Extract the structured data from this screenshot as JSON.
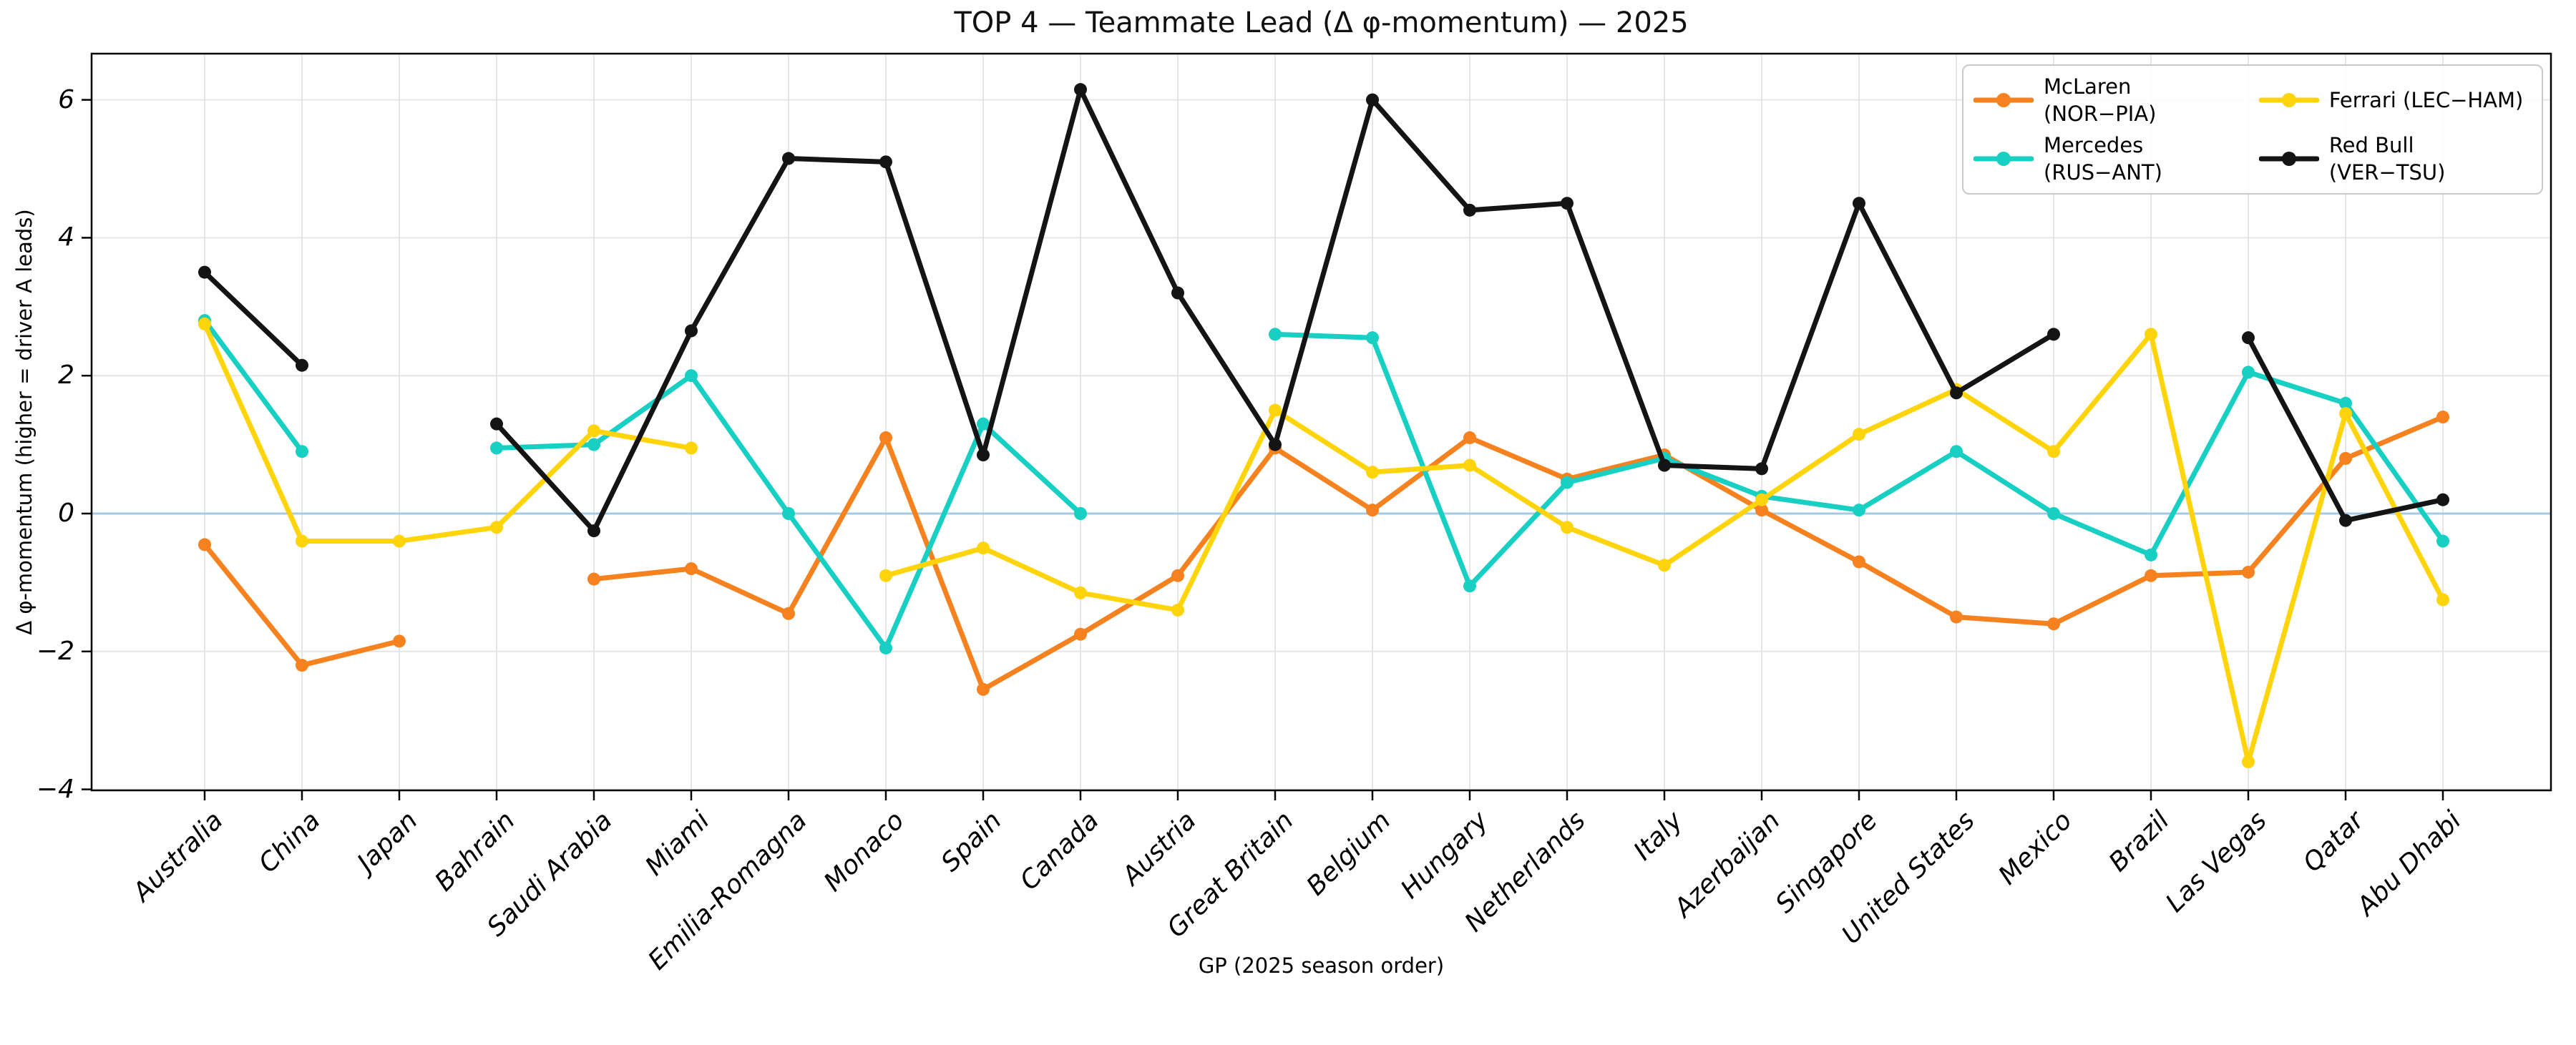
{
  "title": "TOP 4 — Teammate Lead (Δ φ-momentum) — 2025",
  "chart_data": {
    "type": "line",
    "title": "TOP 4 — Teammate Lead (Δ φ-momentum) — 2025",
    "xlabel": "GP (2025 season order)",
    "ylabel": "Δ φ-momentum (higher = driver A leads)",
    "categories": [
      "Australia",
      "China",
      "Japan",
      "Bahrain",
      "Saudi Arabia",
      "Miami",
      "Emilia-Romagna",
      "Monaco",
      "Spain",
      "Canada",
      "Austria",
      "Great Britain",
      "Belgium",
      "Hungary",
      "Netherlands",
      "Italy",
      "Azerbaijan",
      "Singapore",
      "United States",
      "Mexico",
      "Brazil",
      "Las Vegas",
      "Qatar",
      "Abu Dhabi"
    ],
    "series": [
      {
        "id": "mclaren",
        "name": "McLaren (NOR−PIA)",
        "color": "#F6821F",
        "values": [
          -0.45,
          -2.2,
          -1.85,
          null,
          -0.95,
          -0.8,
          -1.45,
          1.1,
          -2.55,
          -1.75,
          -0.9,
          0.95,
          0.05,
          1.1,
          0.5,
          0.85,
          0.05,
          -0.7,
          -1.5,
          -1.6,
          -0.9,
          -0.85,
          0.8,
          1.4
        ]
      },
      {
        "id": "mercedes",
        "name": "Mercedes (RUS−ANT)",
        "color": "#17CFC2",
        "values": [
          2.8,
          0.9,
          null,
          0.95,
          1.0,
          2.0,
          0.0,
          -1.95,
          1.3,
          0.0,
          null,
          2.6,
          2.55,
          -1.05,
          0.45,
          0.8,
          0.25,
          0.05,
          0.9,
          0.0,
          -0.6,
          2.05,
          1.6,
          -0.4
        ]
      },
      {
        "id": "ferrari",
        "name": "Ferrari (LEC−HAM)",
        "color": "#FFD40A",
        "values": [
          2.75,
          -0.4,
          -0.4,
          -0.2,
          1.2,
          0.95,
          null,
          -0.9,
          -0.5,
          -1.15,
          -1.4,
          1.5,
          0.6,
          0.7,
          -0.2,
          -0.75,
          0.2,
          1.15,
          1.8,
          0.9,
          2.6,
          -3.6,
          1.45,
          -1.25
        ]
      },
      {
        "id": "redbull",
        "name": "Red Bull (VER−TSU)",
        "color": "#141414",
        "values": [
          3.5,
          2.15,
          null,
          1.3,
          -0.25,
          2.65,
          5.15,
          5.1,
          0.85,
          6.15,
          3.2,
          1.0,
          6.0,
          4.4,
          4.5,
          0.7,
          0.65,
          4.5,
          1.75,
          2.6,
          null,
          2.55,
          -0.1,
          0.2
        ]
      }
    ],
    "yticks": [
      -4,
      -2,
      0,
      2,
      4,
      6
    ],
    "ytick_labels": [
      "−4",
      "−2",
      "0",
      "2",
      "4",
      "6"
    ],
    "ylim": [
      -4.1,
      6.7
    ],
    "grid": true,
    "grid_color": "#e6e6e6",
    "zero_line_color": "#A6CAE2",
    "spine_color": "#000000",
    "legend_position": "upper right",
    "legend_columns": 2
  },
  "legend": {
    "items": [
      {
        "id": "mclaren",
        "label": "McLaren (NOR−PIA)",
        "color": "#F6821F"
      },
      {
        "id": "mercedes",
        "label": "Mercedes (RUS−ANT)",
        "color": "#17CFC2"
      },
      {
        "id": "ferrari",
        "label": "Ferrari (LEC−HAM)",
        "color": "#FFD40A"
      },
      {
        "id": "redbull",
        "label": "Red Bull (VER−TSU)",
        "color": "#141414"
      }
    ]
  }
}
